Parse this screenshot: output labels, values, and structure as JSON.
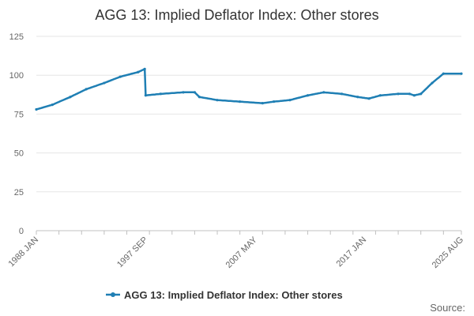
{
  "chart_data": {
    "type": "line",
    "title": "AGG 13: Implied Deflator Index: Other stores",
    "xlabel": "",
    "ylabel": "",
    "ylim": [
      0,
      125
    ],
    "yticks": [
      0,
      25,
      50,
      75,
      100,
      125
    ],
    "x_tick_labels": [
      "1988 JAN",
      "1997 SEP",
      "2007 MAY",
      "2017 JAN",
      "2025 AUG"
    ],
    "grid": true,
    "legend_position": "bottom",
    "series": [
      {
        "name": "AGG 13: Implied Deflator Index: Other stores",
        "color": "#1f7fb4",
        "anchors": [
          {
            "date": "1988-01",
            "value": 78
          },
          {
            "date": "1989-06",
            "value": 81
          },
          {
            "date": "1991-01",
            "value": 86
          },
          {
            "date": "1992-06",
            "value": 91
          },
          {
            "date": "1994-01",
            "value": 95
          },
          {
            "date": "1995-06",
            "value": 99
          },
          {
            "date": "1997-01",
            "value": 102
          },
          {
            "date": "1997-08",
            "value": 104
          },
          {
            "date": "1997-09",
            "value": 87
          },
          {
            "date": "1999-01",
            "value": 88
          },
          {
            "date": "2001-01",
            "value": 89
          },
          {
            "date": "2002-01",
            "value": 89
          },
          {
            "date": "2002-06",
            "value": 86
          },
          {
            "date": "2004-01",
            "value": 84
          },
          {
            "date": "2006-01",
            "value": 83
          },
          {
            "date": "2008-01",
            "value": 82
          },
          {
            "date": "2009-01",
            "value": 83
          },
          {
            "date": "2010-06",
            "value": 84
          },
          {
            "date": "2012-01",
            "value": 87
          },
          {
            "date": "2013-06",
            "value": 89
          },
          {
            "date": "2015-01",
            "value": 88
          },
          {
            "date": "2016-06",
            "value": 86
          },
          {
            "date": "2017-06",
            "value": 85
          },
          {
            "date": "2018-06",
            "value": 87
          },
          {
            "date": "2020-01",
            "value": 88
          },
          {
            "date": "2021-01",
            "value": 88
          },
          {
            "date": "2021-06",
            "value": 87
          },
          {
            "date": "2022-01",
            "value": 88
          },
          {
            "date": "2023-01",
            "value": 95
          },
          {
            "date": "2024-01",
            "value": 101
          },
          {
            "date": "2025-08",
            "value": 101
          }
        ]
      }
    ]
  },
  "footer": {
    "source_label": "Source:"
  }
}
